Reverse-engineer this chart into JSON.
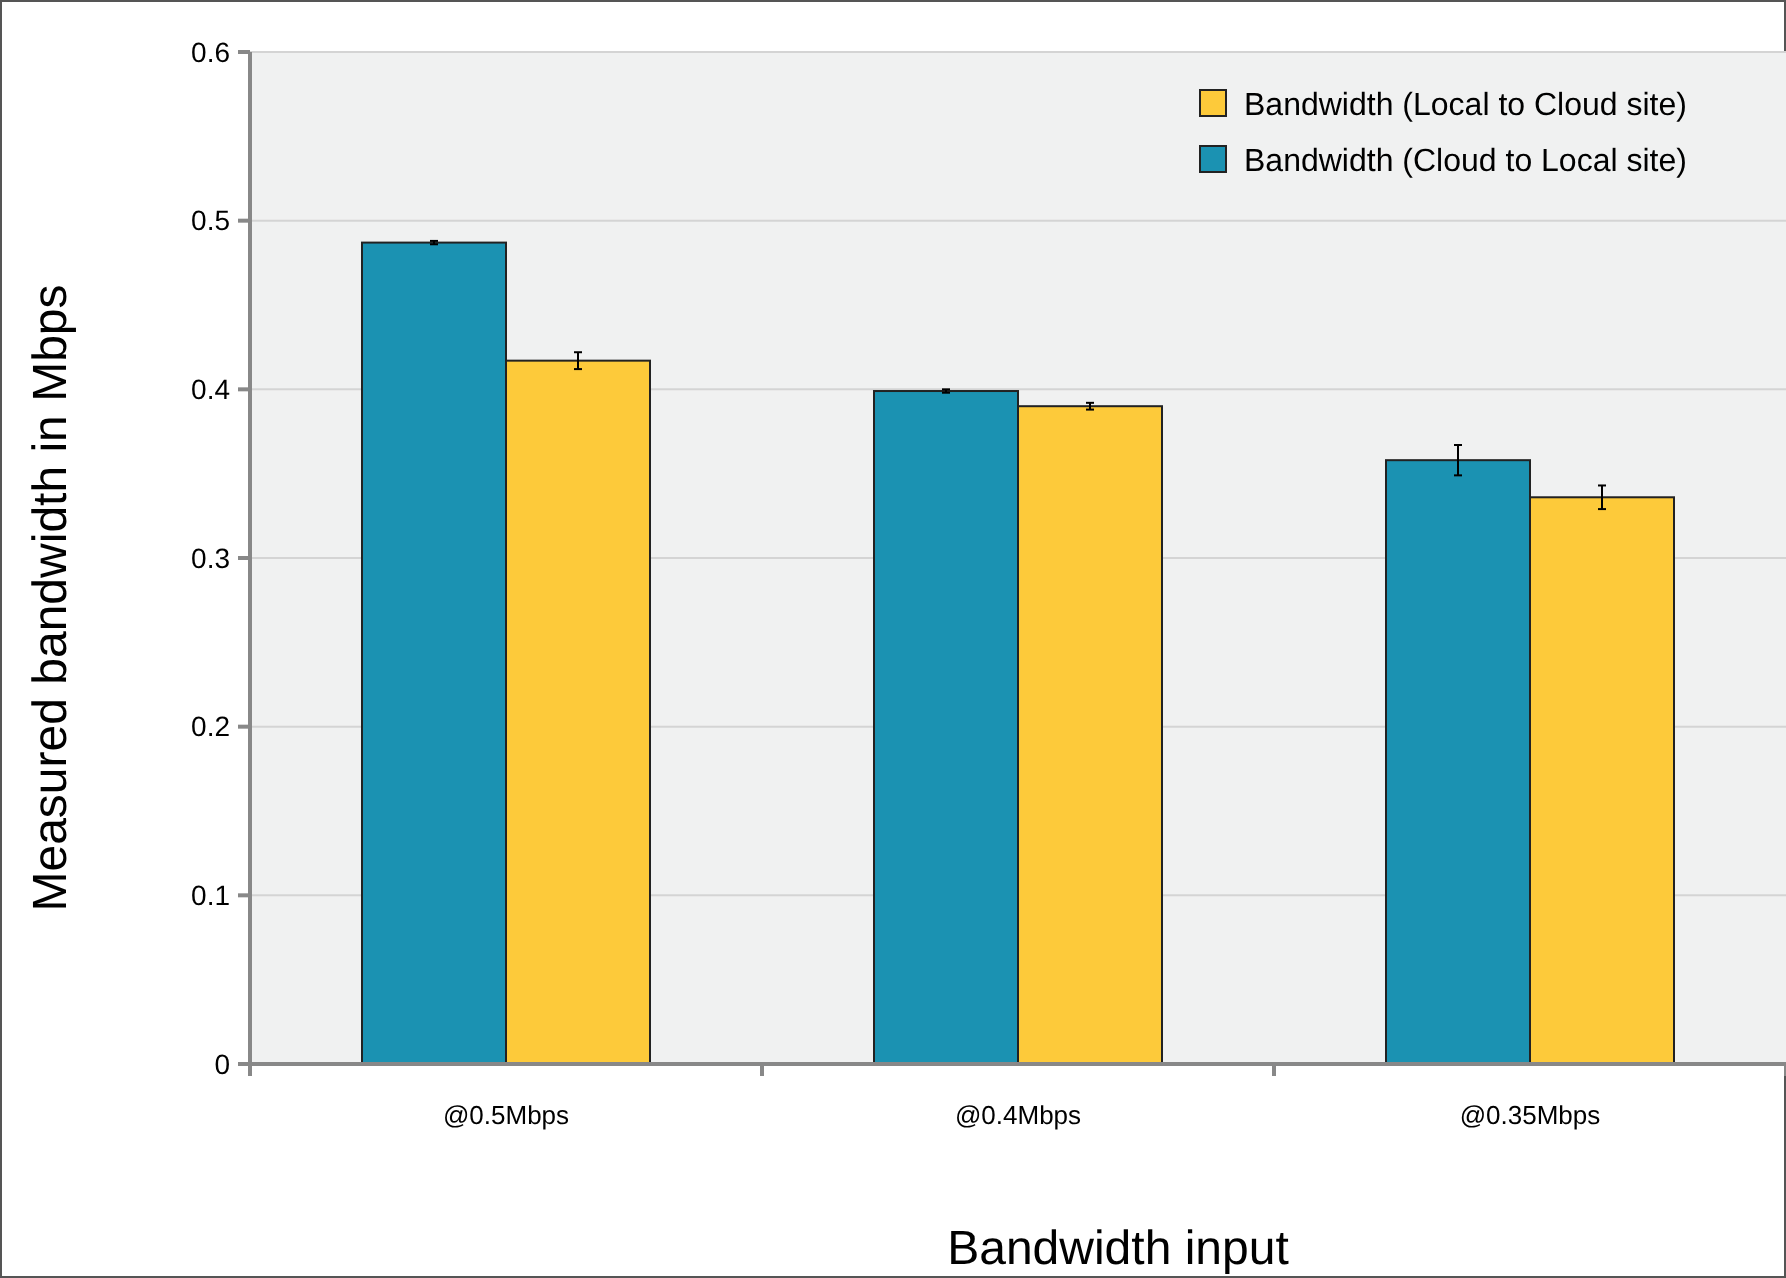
{
  "chart_data": {
    "type": "bar",
    "xlabel": "Bandwidth input",
    "ylabel": "Measured bandwidth in Mbps",
    "categories": [
      "@0.5Mbps",
      "@0.4Mbps",
      "@0.35Mbps"
    ],
    "series": [
      {
        "name": "Bandwidth (Cloud to Local site)",
        "color": "#1b92b2",
        "values": [
          0.487,
          0.399,
          0.358
        ],
        "errors": [
          0.001,
          0.001,
          0.009
        ]
      },
      {
        "name": "Bandwidth (Local to Cloud site)",
        "color": "#fdca3a",
        "values": [
          0.417,
          0.39,
          0.336
        ],
        "errors": [
          0.005,
          0.002,
          0.007
        ]
      }
    ],
    "ylim": [
      0,
      0.6
    ],
    "yticks": [
      {
        "value": 0,
        "label": "0"
      },
      0.1,
      0.2,
      0.3,
      0.4,
      0.5,
      0.6
    ],
    "grid": "y",
    "legend": "top right"
  }
}
